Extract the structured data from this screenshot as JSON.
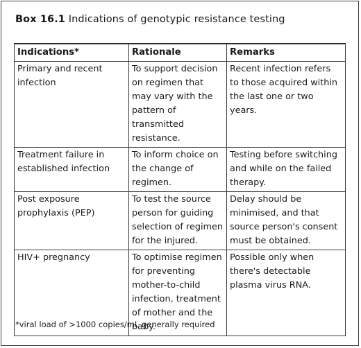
{
  "box": {
    "label": "Box 16.1",
    "title": "Indications of genotypic resistance testing"
  },
  "table": {
    "headers": [
      "Indications*",
      "Rationale",
      "Remarks"
    ],
    "rows": [
      {
        "indication": "Primary and recent infection",
        "rationale": "To support decision on regimen that may vary with the pattern of transmitted resistance.",
        "remarks": "Recent infection refers to those acquired within the last one or two years."
      },
      {
        "indication": "Treatment failure in established infection",
        "rationale": "To inform choice on the change of regimen.",
        "remarks": "Testing before switching and while on the failed therapy."
      },
      {
        "indication": "Post exposure prophylaxis (PEP)",
        "rationale": "To test the source person for guiding selection of regimen for the injured.",
        "remarks": "Delay should be minimised, and that source person's consent must be obtained."
      },
      {
        "indication": "HIV+ pregnancy",
        "rationale": "To optimise regimen for preventing mother-to-child infection, treatment of mother and the baby.",
        "remarks": "Possible only when there's detectable plasma virus RNA."
      }
    ]
  },
  "footnote": "*viral load of >1000 copies/mL generally required"
}
